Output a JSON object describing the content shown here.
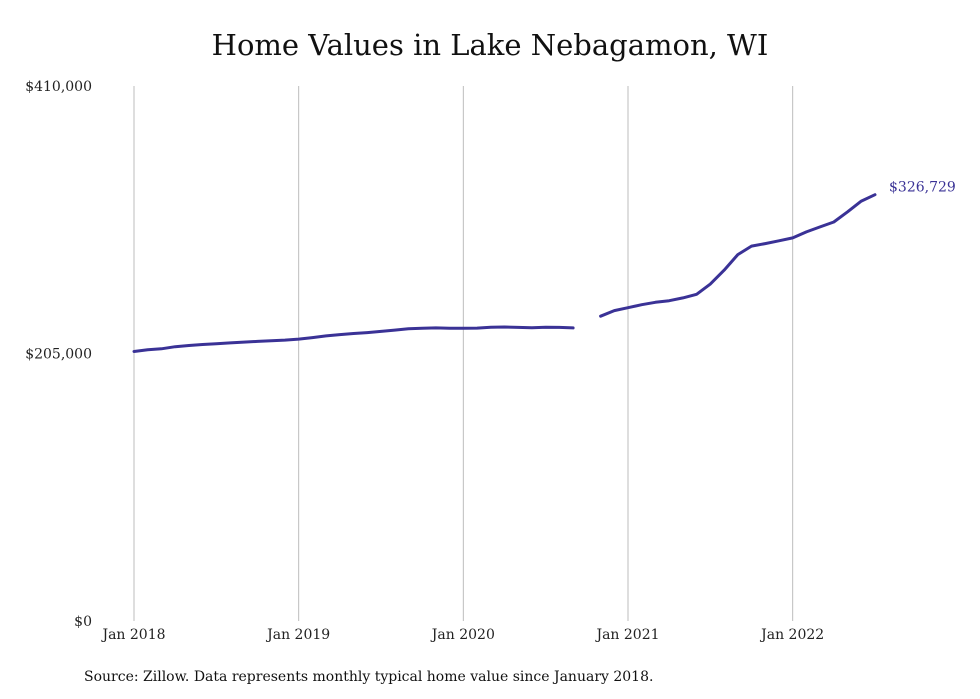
{
  "chart_data": {
    "type": "line",
    "title": "Home Values in Lake Nebagamon, WI",
    "source": "Source: Zillow. Data represents monthly typical home value since January 2018.",
    "ylim": [
      0,
      410000
    ],
    "y_ticks": [
      {
        "value": 0,
        "label": "$0"
      },
      {
        "value": 205000,
        "label": "$205,000"
      },
      {
        "value": 410000,
        "label": "$410,000"
      }
    ],
    "x_ticks": [
      {
        "date": "2018-01",
        "label": "Jan 2018"
      },
      {
        "date": "2019-01",
        "label": "Jan 2019"
      },
      {
        "date": "2020-01",
        "label": "Jan 2020"
      },
      {
        "date": "2021-01",
        "label": "Jan 2021"
      },
      {
        "date": "2022-01",
        "label": "Jan 2022"
      }
    ],
    "x_range": [
      "2018-01",
      "2022-07"
    ],
    "grid": "vertical",
    "line_color": "#3a3296",
    "end_label": "$326,729",
    "series": [
      {
        "segments": [
          [
            {
              "x": "2018-01",
              "y": 206500
            },
            {
              "x": "2018-02",
              "y": 207800
            },
            {
              "x": "2018-03",
              "y": 208600
            },
            {
              "x": "2018-04",
              "y": 210200
            },
            {
              "x": "2018-05",
              "y": 211100
            },
            {
              "x": "2018-06",
              "y": 211900
            },
            {
              "x": "2018-07",
              "y": 212500
            },
            {
              "x": "2018-08",
              "y": 213100
            },
            {
              "x": "2018-09",
              "y": 213700
            },
            {
              "x": "2018-10",
              "y": 214300
            },
            {
              "x": "2018-11",
              "y": 214800
            },
            {
              "x": "2018-12",
              "y": 215300
            },
            {
              "x": "2019-01",
              "y": 216000
            },
            {
              "x": "2019-02",
              "y": 217200
            },
            {
              "x": "2019-03",
              "y": 218500
            },
            {
              "x": "2019-04",
              "y": 219500
            },
            {
              "x": "2019-05",
              "y": 220300
            },
            {
              "x": "2019-06",
              "y": 221000
            },
            {
              "x": "2019-07",
              "y": 221900
            },
            {
              "x": "2019-08",
              "y": 222900
            },
            {
              "x": "2019-09",
              "y": 224000
            },
            {
              "x": "2019-10",
              "y": 224300
            },
            {
              "x": "2019-11",
              "y": 224600
            },
            {
              "x": "2019-12",
              "y": 224300
            },
            {
              "x": "2020-01",
              "y": 224300
            },
            {
              "x": "2020-02",
              "y": 224500
            },
            {
              "x": "2020-03",
              "y": 225100
            },
            {
              "x": "2020-04",
              "y": 225300
            },
            {
              "x": "2020-05",
              "y": 225000
            },
            {
              "x": "2020-06",
              "y": 224700
            },
            {
              "x": "2020-07",
              "y": 225100
            },
            {
              "x": "2020-08",
              "y": 225000
            },
            {
              "x": "2020-09",
              "y": 224600
            }
          ],
          [
            {
              "x": "2020-11",
              "y": 233600
            },
            {
              "x": "2020-12",
              "y": 237900
            },
            {
              "x": "2021-01",
              "y": 240100
            },
            {
              "x": "2021-02",
              "y": 242400
            },
            {
              "x": "2021-03",
              "y": 244200
            },
            {
              "x": "2021-04",
              "y": 245500
            },
            {
              "x": "2021-05",
              "y": 247600
            },
            {
              "x": "2021-06",
              "y": 250400
            },
            {
              "x": "2021-07",
              "y": 258200
            },
            {
              "x": "2021-08",
              "y": 268800
            },
            {
              "x": "2021-09",
              "y": 280800
            },
            {
              "x": "2021-10",
              "y": 287300
            },
            {
              "x": "2021-11",
              "y": 289200
            },
            {
              "x": "2021-12",
              "y": 291400
            },
            {
              "x": "2022-01",
              "y": 293600
            },
            {
              "x": "2022-02",
              "y": 298200
            },
            {
              "x": "2022-03",
              "y": 302000
            },
            {
              "x": "2022-04",
              "y": 305800
            },
            {
              "x": "2022-05",
              "y": 313600
            },
            {
              "x": "2022-06",
              "y": 321800
            },
            {
              "x": "2022-07",
              "y": 326729
            }
          ]
        ]
      }
    ]
  }
}
